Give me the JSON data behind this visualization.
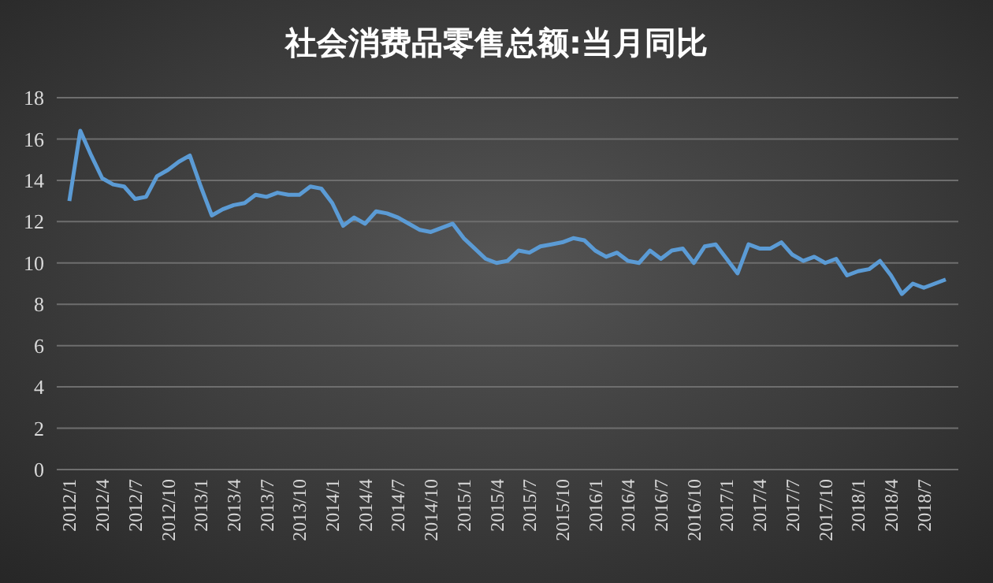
{
  "chart_data": {
    "type": "line",
    "title": "社会消费品零售总额:当月同比",
    "categories": [
      "2012/1",
      null,
      null,
      "2012/4",
      null,
      null,
      "2012/7",
      null,
      null,
      "2012/10",
      null,
      null,
      "2013/1",
      null,
      null,
      "2013/4",
      null,
      null,
      "2013/7",
      null,
      null,
      "2013/10",
      null,
      null,
      "2014/1",
      null,
      null,
      "2014/4",
      null,
      null,
      "2014/7",
      null,
      null,
      "2014/10",
      null,
      null,
      "2015/1",
      null,
      null,
      "2015/4",
      null,
      null,
      "2015/7",
      null,
      null,
      "2015/10",
      null,
      null,
      "2016/1",
      null,
      null,
      "2016/4",
      null,
      null,
      "2016/7",
      null,
      null,
      "2016/10",
      null,
      null,
      "2017/1",
      null,
      null,
      "2017/4",
      null,
      null,
      "2017/7",
      null,
      null,
      "2017/10",
      null,
      null,
      "2018/1",
      null,
      null,
      "2018/4",
      null,
      null,
      "2018/7",
      null,
      null
    ],
    "series": [
      {
        "color": "#5b9bd5",
        "values": [
          13.0,
          16.4,
          15.2,
          14.1,
          13.8,
          13.7,
          13.1,
          13.2,
          14.2,
          14.5,
          14.9,
          15.2,
          13.7,
          12.3,
          12.6,
          12.8,
          12.9,
          13.3,
          13.2,
          13.4,
          13.3,
          13.3,
          13.7,
          13.6,
          12.9,
          11.8,
          12.2,
          11.9,
          12.5,
          12.4,
          12.2,
          11.9,
          11.6,
          11.5,
          11.7,
          11.9,
          11.2,
          10.7,
          10.2,
          10.0,
          10.1,
          10.6,
          10.5,
          10.8,
          10.9,
          11.0,
          11.2,
          11.1,
          10.6,
          10.3,
          10.5,
          10.1,
          10.0,
          10.6,
          10.2,
          10.6,
          10.7,
          10.0,
          10.8,
          10.9,
          10.2,
          9.5,
          10.9,
          10.7,
          10.7,
          11.0,
          10.4,
          10.1,
          10.3,
          10.0,
          10.2,
          9.4,
          9.6,
          9.7,
          10.1,
          9.4,
          8.5,
          9.0,
          8.8,
          9.0,
          9.2
        ]
      }
    ],
    "ylim": [
      0,
      18
    ],
    "yticks": [
      0,
      2,
      4,
      6,
      8,
      10,
      12,
      14,
      16,
      18
    ],
    "grid": "y",
    "marker": "none",
    "line_style": "solid"
  }
}
